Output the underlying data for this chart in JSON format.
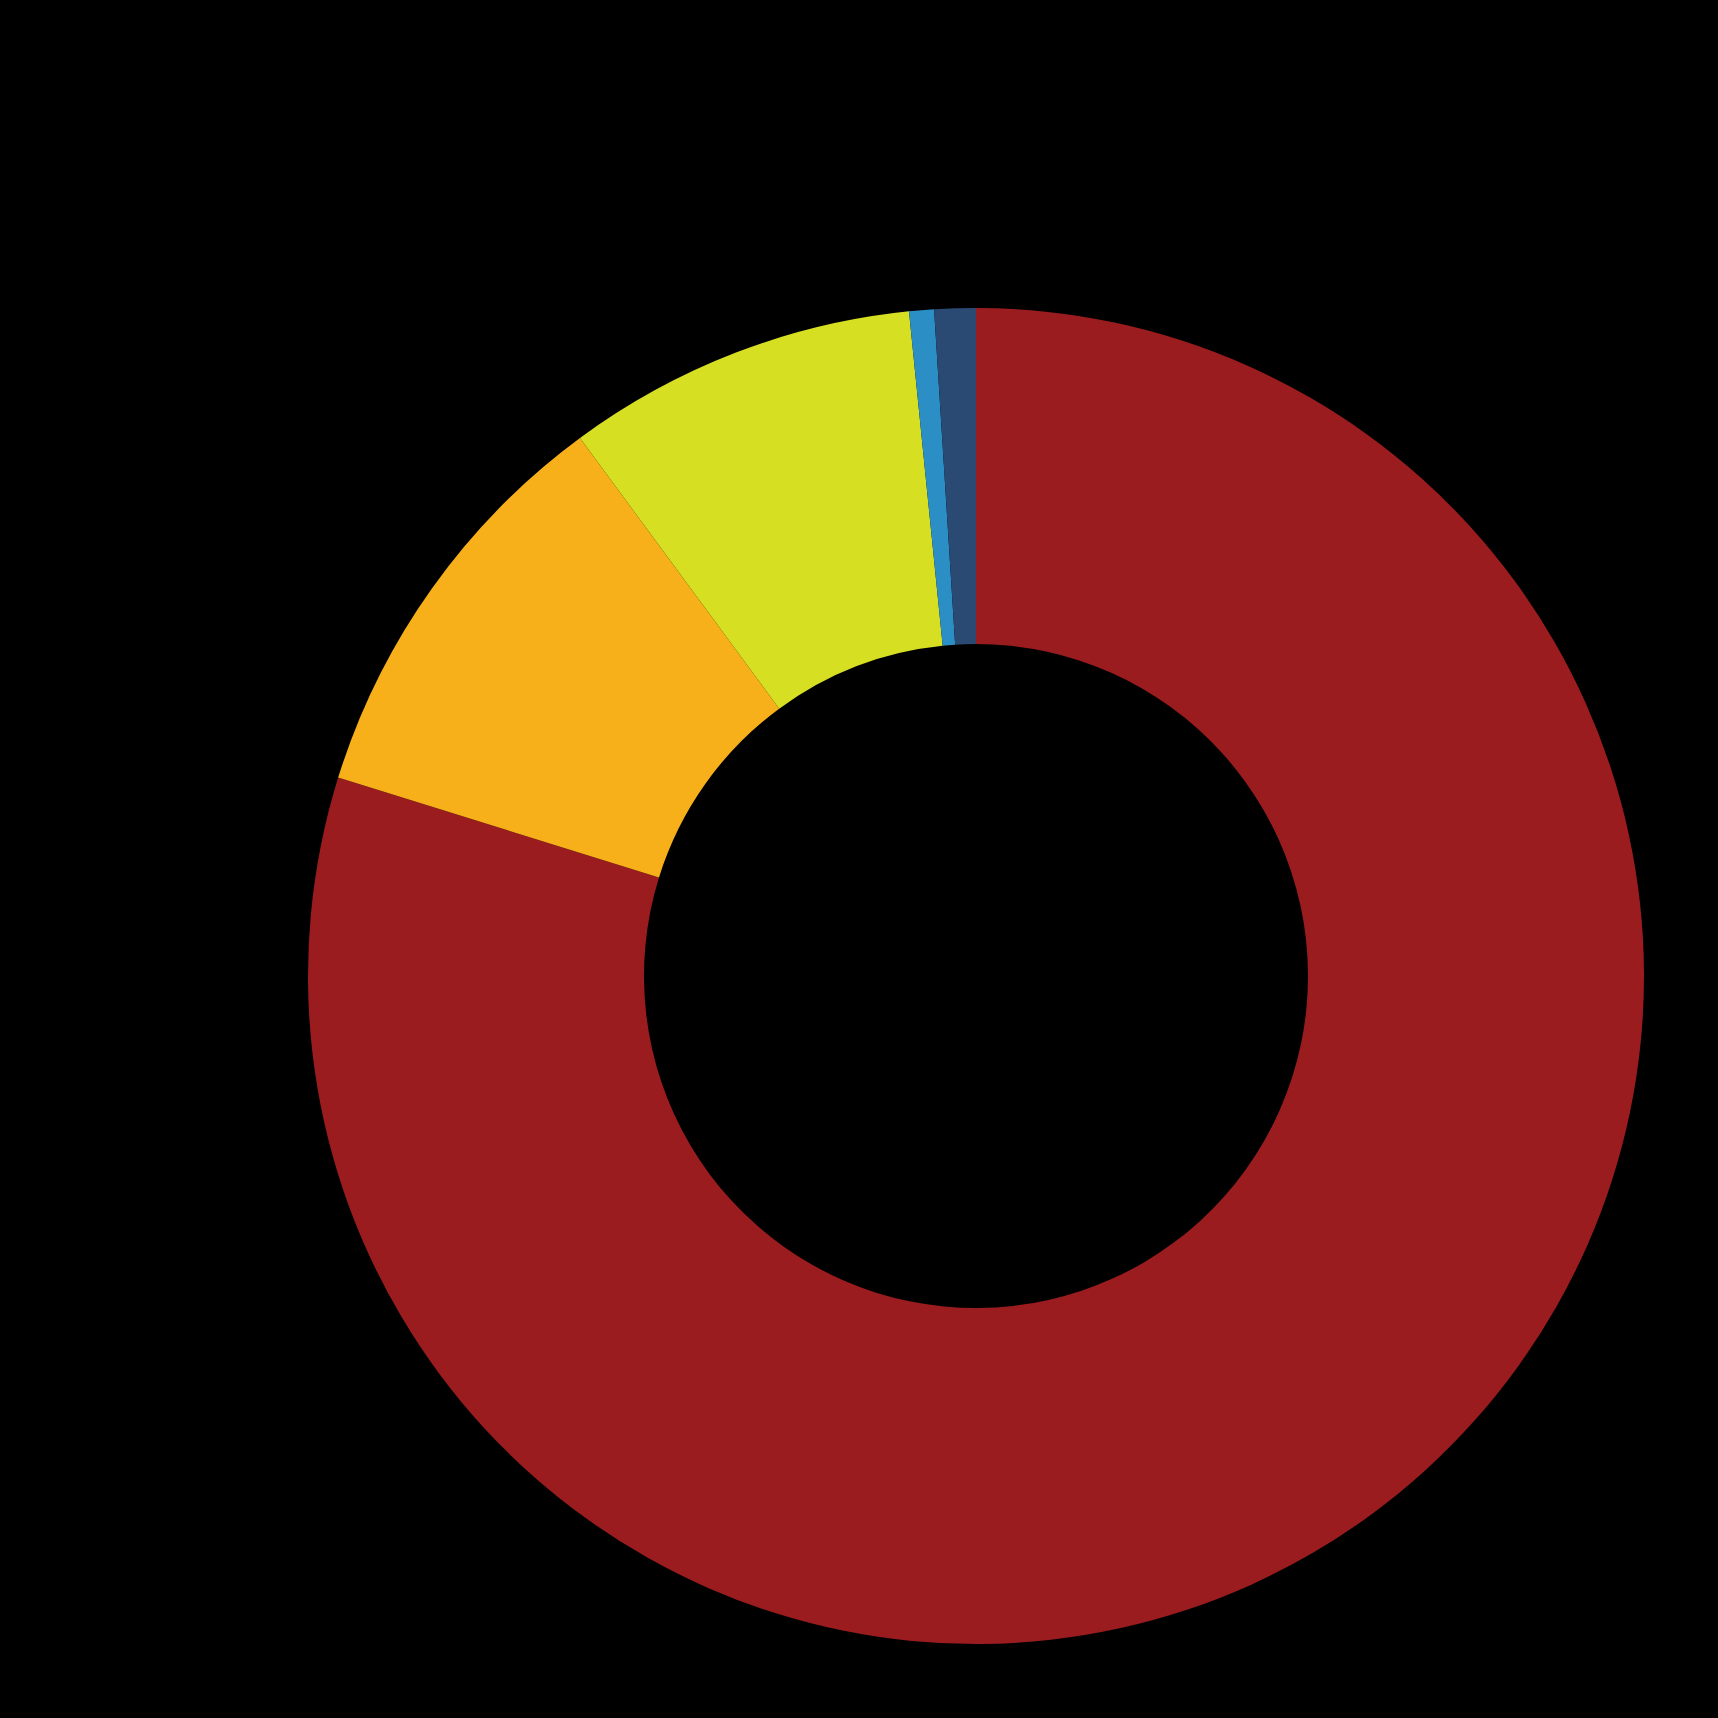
{
  "chart_data": {
    "type": "donut",
    "categories": [
      null,
      null,
      null,
      null,
      null
    ],
    "values": [
      79.8,
      10.1,
      8.5,
      0.6,
      1.0
    ],
    "colors": [
      "#9a1c1f",
      "#f8b01a",
      "#d7df23",
      "#2b8fc6",
      "#2a4a73"
    ]
  }
}
